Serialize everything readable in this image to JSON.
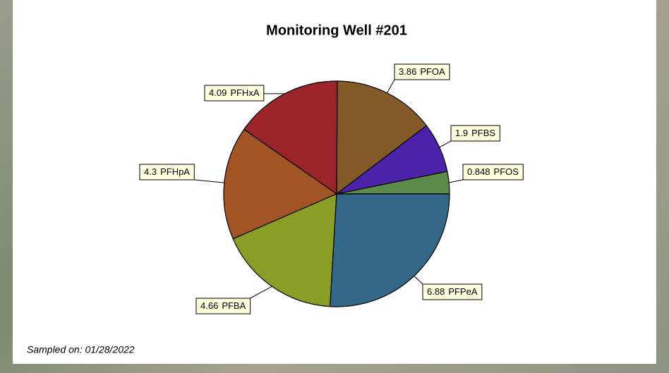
{
  "chart_data": {
    "type": "pie",
    "title": "Monitoring Well #201",
    "categories": [
      "PFOS",
      "PFBS",
      "PFOA",
      "PFHxA",
      "PFHpA",
      "PFBA",
      "PFPeA"
    ],
    "values": [
      0.848,
      1.9,
      3.86,
      4.09,
      4.3,
      4.66,
      6.88
    ],
    "colors": [
      "#5b8a4b",
      "#4b22a8",
      "#855a29",
      "#9b242b",
      "#a35425",
      "#8a9e27",
      "#336889"
    ],
    "footnote": "Sampled on: 01/28/2022"
  }
}
